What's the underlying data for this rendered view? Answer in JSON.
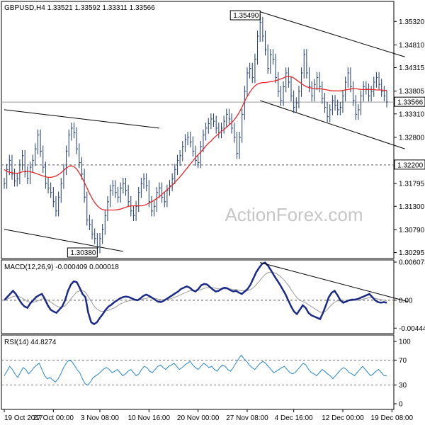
{
  "chart_data": {
    "type": "line",
    "title": "GBPUSD,H4  1.33521  1.33592  1.33311  1.33566",
    "watermark": "ActionForex.com",
    "x_axis": {
      "tick_labels": [
        "19 Oct 2017",
        "27 Oct 00:00",
        "3 Nov 08:00",
        "10 Nov 16:00",
        "20 Nov 00:00",
        "27 Nov 08:00",
        "4 Dec 16:00",
        "12 Dec 00:00",
        "19 Dec 08:00"
      ],
      "tick_index": [
        0,
        19,
        37,
        56,
        75,
        94,
        112,
        131,
        150
      ]
    },
    "price_panel": {
      "y_ticks": [
        1.3532,
        1.3481,
        1.34315,
        1.33805,
        1.3331,
        1.328,
        1.31795,
        1.313,
        1.3079,
        1.30295
      ],
      "y_tick_labels": [
        "1.35320",
        "1.34810",
        "1.34315",
        "1.33805",
        "1.33310",
        "1.32800",
        "1.31795",
        "1.31300",
        "1.30790",
        "1.30295"
      ],
      "ylim": [
        1.3018,
        1.3574
      ],
      "last_price": 1.33566,
      "last_price_label": "1.33566",
      "support_level": 1.322,
      "support_label": "1.32200",
      "annotations": [
        {
          "label": "1.35490",
          "value": 1.3549,
          "index": 99
        },
        {
          "label": "1.30380",
          "value": 1.3038,
          "index": 36
        }
      ],
      "price_close": [
        1.318,
        1.321,
        1.323,
        1.32,
        1.3185,
        1.319,
        1.322,
        1.324,
        1.3205,
        1.319,
        1.3215,
        1.323,
        1.3255,
        1.3285,
        1.325,
        1.3215,
        1.318,
        1.317,
        1.316,
        1.314,
        1.312,
        1.315,
        1.318,
        1.321,
        1.325,
        1.3285,
        1.33,
        1.329,
        1.3255,
        1.3225,
        1.32,
        1.315,
        1.31,
        1.309,
        1.307,
        1.306,
        1.304,
        1.306,
        1.308,
        1.311,
        1.314,
        1.3165,
        1.3175,
        1.316,
        1.315,
        1.317,
        1.318,
        1.3165,
        1.314,
        1.312,
        1.311,
        1.313,
        1.316,
        1.318,
        1.319,
        1.3175,
        1.314,
        1.312,
        1.313,
        1.316,
        1.317,
        1.315,
        1.314,
        1.3165,
        1.3175,
        1.319,
        1.321,
        1.323,
        1.324,
        1.326,
        1.3275,
        1.328,
        1.327,
        1.325,
        1.323,
        1.3225,
        1.326,
        1.3285,
        1.33,
        1.331,
        1.332,
        1.3315,
        1.33,
        1.329,
        1.33,
        1.3315,
        1.333,
        1.332,
        1.33,
        1.328,
        1.3245,
        1.328,
        1.333,
        1.338,
        1.342,
        1.343,
        1.341,
        1.345,
        1.35,
        1.353,
        1.35,
        1.347,
        1.343,
        1.346,
        1.345,
        1.341,
        1.338,
        1.336,
        1.339,
        1.342,
        1.34,
        1.337,
        1.3345,
        1.3355,
        1.338,
        1.342,
        1.346,
        1.342,
        1.339,
        1.337,
        1.3395,
        1.341,
        1.339,
        1.3365,
        1.3345,
        1.3325,
        1.334,
        1.336,
        1.335,
        1.334,
        1.3345,
        1.337,
        1.34,
        1.342,
        1.339,
        1.336,
        1.333,
        1.334,
        1.337,
        1.339,
        1.3385,
        1.337,
        1.338,
        1.34,
        1.341,
        1.3395,
        1.338,
        1.337,
        1.3357
      ],
      "ma_line": [
        1.321,
        1.3206,
        1.3204,
        1.3203,
        1.3202,
        1.3202,
        1.3203,
        1.3205,
        1.3206,
        1.3206,
        1.3205,
        1.3204,
        1.3202,
        1.32,
        1.3198,
        1.3196,
        1.3194,
        1.3193,
        1.3193,
        1.3194,
        1.3196,
        1.3199,
        1.3203,
        1.3208,
        1.3213,
        1.3217,
        1.3218,
        1.3216,
        1.3211,
        1.3203,
        1.3193,
        1.3182,
        1.317,
        1.3158,
        1.3147,
        1.3138,
        1.3131,
        1.3126,
        1.3123,
        1.3122,
        1.3122,
        1.3122,
        1.3122,
        1.3122,
        1.3123,
        1.3124,
        1.3126,
        1.3128,
        1.313,
        1.3131,
        1.3131,
        1.3131,
        1.3131,
        1.3131,
        1.3132,
        1.3134,
        1.3137,
        1.314,
        1.3143,
        1.3147,
        1.3151,
        1.3156,
        1.3161,
        1.3166,
        1.3171,
        1.3176,
        1.3182,
        1.3188,
        1.3194,
        1.3201,
        1.3208,
        1.3215,
        1.3222,
        1.3229,
        1.3236,
        1.3242,
        1.3248,
        1.3254,
        1.3261,
        1.3267,
        1.3272,
        1.3278,
        1.3283,
        1.3288,
        1.3293,
        1.3297,
        1.3302,
        1.3307,
        1.3312,
        1.3318,
        1.3326,
        1.3335,
        1.3346,
        1.3358,
        1.3369,
        1.3378,
        1.3386,
        1.3392,
        1.3396,
        1.3398,
        1.3399,
        1.3399,
        1.34,
        1.3401,
        1.3402,
        1.3403,
        1.3405,
        1.3407,
        1.3409,
        1.3412,
        1.3413,
        1.3412,
        1.3409,
        1.3405,
        1.3401,
        1.3397,
        1.3393,
        1.339,
        1.3388,
        1.3387,
        1.3386,
        1.3386,
        1.3386,
        1.3385,
        1.3384,
        1.3383,
        1.3382,
        1.3381,
        1.3381,
        1.3381,
        1.3381,
        1.3382,
        1.3383,
        1.3384,
        1.3385,
        1.3386,
        1.3386,
        1.3385,
        1.3384,
        1.3384,
        1.3384,
        1.3384,
        1.3384,
        1.3384,
        1.3383,
        1.3383,
        1.3383,
        1.3382,
        1.3382
      ],
      "channels": [
        {
          "name": "upper-left",
          "from": {
            "i": 0,
            "v": 1.334
          },
          "to": {
            "i": 60,
            "v": 1.33
          }
        },
        {
          "name": "lower-left",
          "from": {
            "i": 0,
            "v": 1.308
          },
          "to": {
            "i": 46,
            "v": 1.3032
          }
        },
        {
          "name": "upper-right",
          "from": {
            "i": 99,
            "v": 1.3553
          },
          "to": {
            "i": 155,
            "v": 1.3455
          }
        },
        {
          "name": "lower-right",
          "from": {
            "i": 99,
            "v": 1.336
          },
          "to": {
            "i": 155,
            "v": 1.3255
          }
        }
      ]
    },
    "macd_panel": {
      "label": "MACD(12,26,9) -0.000409 0.000018",
      "y_ticks": [
        0.006073,
        0.0,
        -0.004441
      ],
      "y_tick_labels": [
        "0.006073",
        "0.00",
        "-0.004441"
      ],
      "ylim": [
        -0.0052,
        0.0063
      ],
      "main": [
        0.0,
        0.0005,
        0.001,
        0.0015,
        0.001,
        0.0002,
        -0.0005,
        -0.001,
        -0.0012,
        -0.0005,
        0.0,
        0.0005,
        0.0008,
        0.001,
        0.0002,
        -0.0008,
        -0.0015,
        -0.0018,
        -0.002,
        -0.0015,
        -0.001,
        0.0,
        0.0015,
        0.0025,
        0.003,
        0.0029,
        0.002,
        0.001,
        0.0005,
        -0.002,
        -0.0035,
        -0.0038,
        -0.0035,
        -0.0028,
        -0.0022,
        -0.0015,
        -0.001,
        -0.0007,
        -0.0003,
        0.0,
        0.0003,
        0.0005,
        0.0006,
        0.0005,
        0.0003,
        0.0001,
        0.0,
        0.0003,
        0.0007,
        0.0009,
        0.0007,
        0.0004,
        0.0001,
        -0.0002,
        -0.0003,
        -0.0001,
        0.0002,
        0.0005,
        0.0008,
        0.0011,
        0.0014,
        0.0018,
        0.002,
        0.0022,
        0.002,
        0.0016,
        0.0014,
        0.0018,
        0.0024,
        0.0026,
        0.0025,
        0.0021,
        0.0017,
        0.0014,
        0.0015,
        0.0018,
        0.002,
        0.0019,
        0.0016,
        0.0014,
        0.0015,
        0.0012,
        0.001,
        0.0014,
        0.0018,
        0.0025,
        0.0035,
        0.0045,
        0.0052,
        0.0058,
        0.006,
        0.0055,
        0.0048,
        0.004,
        0.0033,
        0.0026,
        0.0018,
        0.001,
        0.0,
        -0.001,
        -0.0018,
        -0.0022,
        -0.0015,
        -0.0008,
        -0.0012,
        -0.002,
        -0.0024,
        -0.0026,
        -0.0028,
        -0.003,
        -0.002,
        -0.0008,
        0.0005,
        0.0012,
        0.0015,
        0.0008,
        0.0,
        -0.0004,
        -0.0002,
        0.0,
        0.0001,
        0.0001,
        0.0002,
        0.0004,
        0.0006,
        0.0008,
        0.001,
        0.0005,
        0.0,
        -0.0003,
        -0.0004,
        -0.0003,
        -0.0004
      ],
      "signal": [
        0.0001,
        0.0002,
        0.0004,
        0.0006,
        0.0007,
        0.0006,
        0.0004,
        0.0001,
        -0.0002,
        -0.0003,
        -0.0003,
        -0.0002,
        0.0,
        0.0002,
        0.0002,
        0.0,
        -0.0003,
        -0.0006,
        -0.0009,
        -0.0011,
        -0.0011,
        -0.0009,
        -0.0004,
        0.0002,
        0.0008,
        0.0013,
        0.0015,
        0.0015,
        0.0013,
        0.0006,
        -0.0002,
        -0.0009,
        -0.0014,
        -0.0017,
        -0.0018,
        -0.0017,
        -0.0016,
        -0.0014,
        -0.0012,
        -0.0009,
        -0.0006,
        -0.0004,
        -0.0002,
        -0.0001,
        0.0,
        0.0,
        0.0,
        0.0001,
        0.0002,
        0.0003,
        0.0004,
        0.0004,
        0.0003,
        0.0002,
        0.0001,
        0.0001,
        0.0001,
        0.0002,
        0.0003,
        0.0005,
        0.0007,
        0.0009,
        0.0011,
        0.0013,
        0.0015,
        0.0015,
        0.0015,
        0.0016,
        0.0017,
        0.0019,
        0.002,
        0.002,
        0.002,
        0.0019,
        0.0018,
        0.0018,
        0.0018,
        0.0018,
        0.0018,
        0.0017,
        0.0017,
        0.0016,
        0.0015,
        0.0015,
        0.0015,
        0.0017,
        0.002,
        0.0025,
        0.003,
        0.0036,
        0.0041,
        0.0044,
        0.0045,
        0.0044,
        0.0042,
        0.0039,
        0.0035,
        0.003,
        0.0024,
        0.0017,
        0.001,
        0.0004,
        0.0,
        -0.0002,
        -0.0004,
        -0.0007,
        -0.001,
        -0.0013,
        -0.0016,
        -0.0019,
        -0.0019,
        -0.0017,
        -0.0012,
        -0.0007,
        -0.0003,
        -0.0001,
        -0.0001,
        -0.0001,
        -0.0002,
        -0.0001,
        -0.0001,
        0.0,
        0.0,
        0.0001,
        0.0002,
        0.0003,
        0.0004,
        0.0004,
        0.0003,
        0.0002,
        0.0001,
        0.0,
        -0.0001
      ],
      "trendline": {
        "from": {
          "i": 99,
          "v": 0.006
        },
        "to": {
          "i": 156,
          "v": -0.0002
        }
      }
    },
    "rsi_panel": {
      "label": "RSI(14) 44.8274",
      "y_ticks": [
        100,
        70,
        30,
        0
      ],
      "y_tick_labels": [
        "100",
        "70",
        "30",
        "0"
      ],
      "levels": [
        70,
        30
      ],
      "ylim": [
        0,
        100
      ],
      "values": [
        45,
        52,
        60,
        55,
        48,
        42,
        50,
        58,
        55,
        48,
        52,
        58,
        62,
        65,
        55,
        45,
        40,
        42,
        38,
        35,
        40,
        48,
        58,
        65,
        70,
        68,
        62,
        55,
        50,
        40,
        32,
        30,
        35,
        42,
        45,
        48,
        52,
        56,
        58,
        55,
        50,
        52,
        55,
        50,
        45,
        48,
        52,
        55,
        50,
        45,
        48,
        55,
        60,
        58,
        52,
        50,
        55,
        60,
        62,
        58,
        55,
        60,
        62,
        65,
        60,
        55,
        58,
        62,
        65,
        68,
        62,
        58,
        55,
        60,
        65,
        62,
        58,
        60,
        55,
        52,
        58,
        62,
        60,
        55,
        52,
        58,
        65,
        72,
        78,
        72,
        68,
        62,
        58,
        55,
        60,
        65,
        68,
        65,
        60,
        55,
        50,
        52,
        55,
        58,
        60,
        55,
        50,
        48,
        50,
        55,
        60,
        65,
        62,
        55,
        50,
        48,
        45,
        50,
        55,
        52,
        48,
        45,
        40,
        45,
        50,
        55,
        58,
        55,
        50,
        48,
        45,
        50,
        55,
        60,
        55,
        50,
        45,
        48,
        52,
        55,
        50,
        45,
        44.8
      ]
    }
  }
}
